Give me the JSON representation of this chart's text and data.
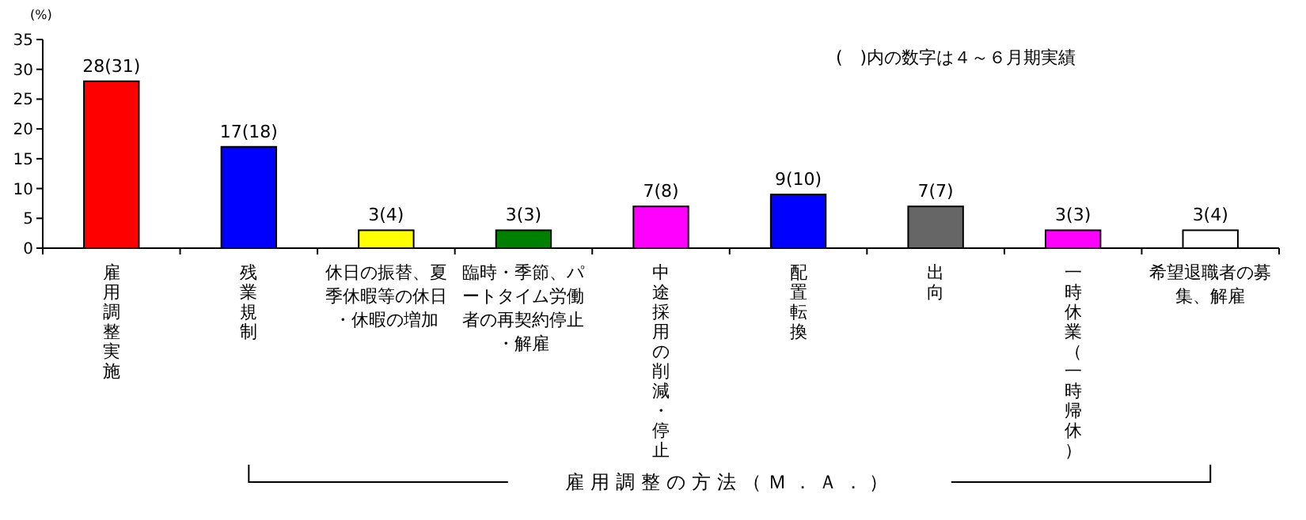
{
  "chart_data": {
    "type": "bar",
    "ylabel": "(%)",
    "categories": [
      "雇用調整実施",
      "残業規制",
      "休日の振替、夏季休暇等の休日・休暇の増加",
      "臨時・季節、パートタイム労働者の再契約停止・解雇",
      "中途採用の削減・停止",
      "配置転換",
      "出向",
      "一時休業（一時帰休）",
      "希望退職者の募集、解雇"
    ],
    "values": [
      28,
      17,
      3,
      3,
      7,
      9,
      7,
      3,
      3
    ],
    "value_labels": [
      "28(31)",
      "17(18)",
      "3(4)",
      "3(3)",
      "7(8)",
      "9(10)",
      "7(7)",
      "3(3)",
      "3(4)"
    ],
    "colors": [
      "#ff0000",
      "#0000ff",
      "#ffff00",
      "#008000",
      "#ff00ff",
      "#0000ff",
      "#666666",
      "#ff00ff",
      "#ffffff"
    ],
    "ylim": [
      0,
      35
    ],
    "yticks": [
      0,
      5,
      10,
      15,
      20,
      25,
      30,
      35
    ],
    "grid": false,
    "annotations": [
      "(　)内の数字は４～６月期実績",
      "雇用調整の方法（Ｍ．Ａ．）"
    ]
  }
}
